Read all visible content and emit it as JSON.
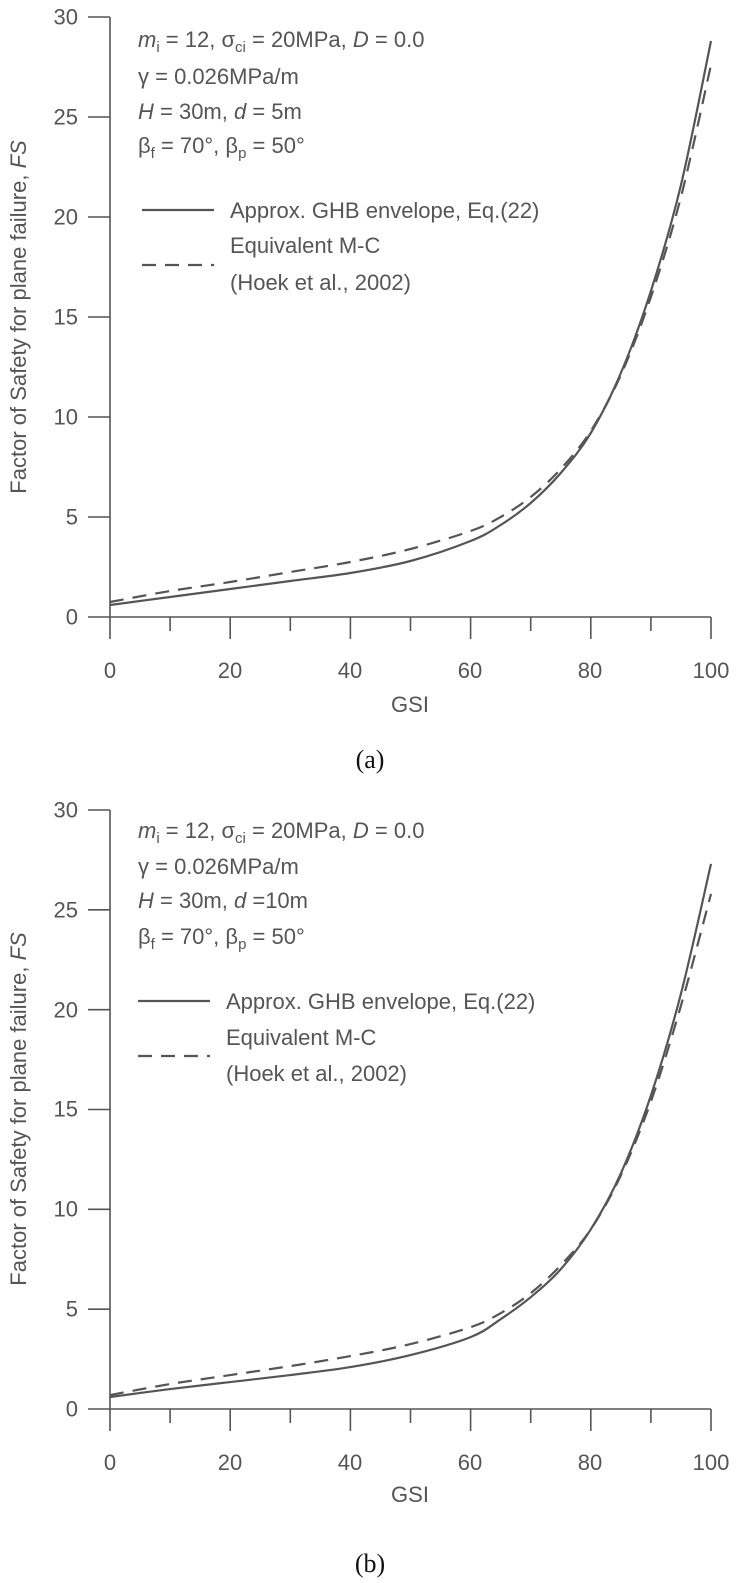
{
  "chart_data": [
    {
      "type": "line",
      "caption": "(a)",
      "xlabel": "GSI",
      "ylabel": "Factor of Safety for plane failure, ",
      "ylabel_italic": "FS",
      "xlim": [
        0,
        100
      ],
      "ylim": [
        0,
        30
      ],
      "x_ticks": [
        "0",
        "20",
        "40",
        "60",
        "80",
        "100"
      ],
      "y_ticks": [
        "0",
        "5",
        "10",
        "15",
        "20",
        "25",
        "30"
      ],
      "annotations": [
        {
          "a": "m",
          "b": "i",
          "c": " = 12,  ",
          "d": "σ",
          "e": "ci",
          "f": " = 20MPa, ",
          "g": "D",
          "h": " = 0.0"
        },
        {
          "text": "γ = 0.026MPa/m"
        },
        {
          "a": "H",
          "b": " = 30m,  ",
          "c": "d",
          "d": " = 5m"
        },
        {
          "a": "β",
          "b": "f",
          "c": " = 70°,  ",
          "d": "β",
          "e": "p",
          "f": " = 50°"
        }
      ],
      "legend": [
        {
          "label": "Approx. GHB envelope, Eq.(22)",
          "style": "solid"
        },
        {
          "label": "Equivalent M-C",
          "label2": "(Hoek et al., 2002)",
          "style": "dashed"
        }
      ],
      "x": [
        0,
        10,
        20,
        30,
        40,
        50,
        60,
        65,
        70,
        75,
        80,
        85,
        90,
        95,
        100
      ],
      "series": [
        {
          "name": "Approx. GHB envelope, Eq.(22)",
          "style": "solid",
          "color": "#555555",
          "values": [
            0.6,
            1.0,
            1.4,
            1.8,
            2.2,
            2.8,
            3.8,
            4.6,
            5.7,
            7.2,
            9.2,
            12.2,
            16.3,
            21.6,
            28.8
          ]
        },
        {
          "name": "Equivalent M-C",
          "style": "dashed",
          "color": "#555555",
          "values": [
            0.75,
            1.3,
            1.75,
            2.25,
            2.75,
            3.4,
            4.3,
            5.0,
            6.0,
            7.4,
            9.3,
            12.1,
            16.0,
            21.0,
            27.6
          ]
        }
      ]
    },
    {
      "type": "line",
      "caption": "(b)",
      "xlabel": "GSI",
      "ylabel": "Factor of Safety for plane failure, ",
      "ylabel_italic": "FS",
      "xlim": [
        0,
        100
      ],
      "ylim": [
        0,
        30
      ],
      "x_ticks": [
        "0",
        "20",
        "40",
        "60",
        "80",
        "100"
      ],
      "y_ticks": [
        "0",
        "5",
        "10",
        "15",
        "20",
        "25",
        "30"
      ],
      "annotations": [
        {
          "a": "m",
          "b": "i",
          "c": " = 12,  ",
          "d": "σ",
          "e": "ci",
          "f": " = 20MPa, ",
          "g": "D",
          "h": " = 0.0"
        },
        {
          "text": "γ = 0.026MPa/m"
        },
        {
          "a": "H",
          "b": " = 30m, ",
          "c": "d",
          "d": " =10m"
        },
        {
          "a": "β",
          "b": "f",
          "c": " = 70°,  ",
          "d": "β",
          "e": "p",
          "f": " = 50°"
        }
      ],
      "legend": [
        {
          "label": "Approx. GHB envelope, Eq.(22)",
          "style": "solid"
        },
        {
          "label": "Equivalent M-C",
          "label2": "(Hoek et al., 2002)",
          "style": "dashed"
        }
      ],
      "x": [
        0,
        10,
        20,
        30,
        40,
        50,
        60,
        65,
        70,
        75,
        80,
        85,
        90,
        95,
        100
      ],
      "series": [
        {
          "name": "Approx. GHB envelope, Eq.(22)",
          "style": "solid",
          "color": "#555555",
          "values": [
            0.6,
            1.0,
            1.35,
            1.7,
            2.1,
            2.7,
            3.6,
            4.5,
            5.6,
            7.0,
            9.0,
            11.8,
            15.7,
            20.8,
            27.3
          ]
        },
        {
          "name": "Equivalent M-C",
          "style": "dashed",
          "color": "#555555",
          "values": [
            0.7,
            1.25,
            1.7,
            2.15,
            2.65,
            3.25,
            4.1,
            4.8,
            5.8,
            7.2,
            9.0,
            11.7,
            15.4,
            20.2,
            25.8
          ]
        }
      ]
    }
  ]
}
